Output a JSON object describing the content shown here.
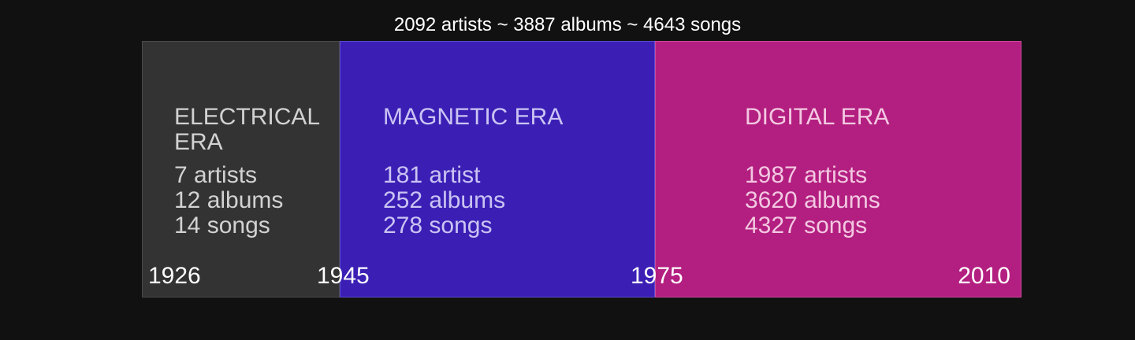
{
  "summary": "2092 artists ~ 3887 albums ~ 4643 songs",
  "eras": [
    {
      "title": "ELECTRICAL ERA",
      "artists": "7 artists",
      "albums": "12 albums",
      "songs": "14 songs",
      "color": "#333333"
    },
    {
      "title": "MAGNETIC ERA",
      "artists": "181 artist",
      "albums": "252 albums",
      "songs": "278 songs",
      "color": "#3b1fb5"
    },
    {
      "title": "DIGITAL ERA",
      "artists": "1987 artists",
      "albums": "3620 albums",
      "songs": "4327 songs",
      "color": "#b31f80"
    }
  ],
  "years": [
    "1926",
    "1945",
    "1975",
    "2010"
  ]
}
